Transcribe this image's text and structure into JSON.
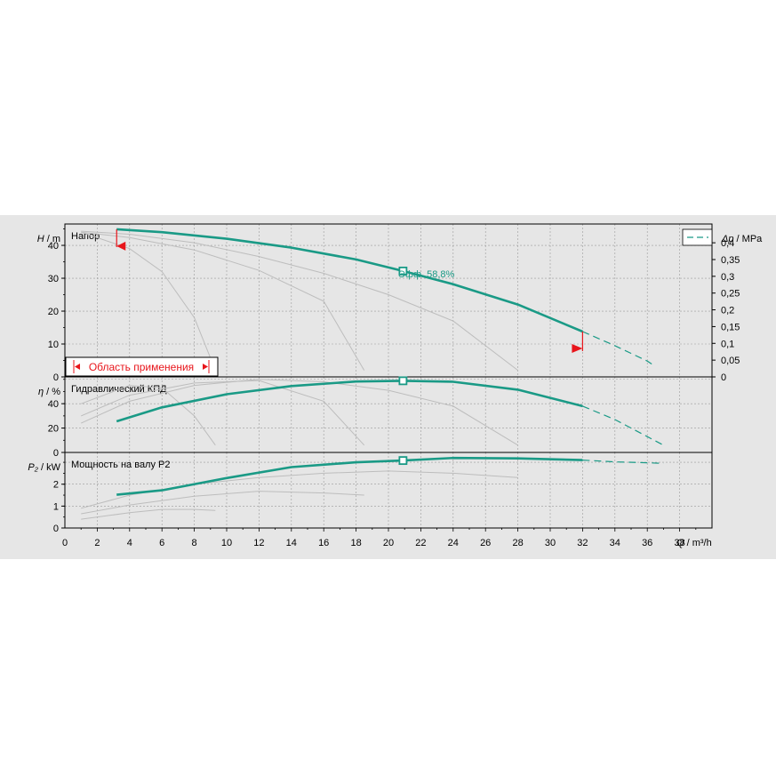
{
  "chart_data": {
    "type": "line",
    "x_label": "Q / m³/h",
    "x_label_sym": "Q",
    "x_label_unit": " / m³/h",
    "x_range": [
      0,
      40
    ],
    "x_ticks": [
      0,
      2,
      4,
      6,
      8,
      10,
      12,
      14,
      16,
      18,
      20,
      22,
      24,
      26,
      28,
      30,
      32,
      34,
      36,
      38
    ],
    "grid": true,
    "colors": {
      "main": "#1a9a86",
      "range": "#e8151b",
      "secondary": "#bdbdbd",
      "background": "#e6e6e6"
    },
    "duty_point": {
      "q": 20.9,
      "h": 32.2,
      "eta": 58.8,
      "p2": 3.08
    },
    "efficiency_label": "Эфф. 58,8%",
    "application_range": {
      "label": "Область применения",
      "q_min": 3.2,
      "q_max": 32
    },
    "legend": {
      "placement": "top-right",
      "symbol": "dashed-line"
    },
    "panels": [
      {
        "id": "head",
        "title": "Напор",
        "y_label_sym": "H",
        "y_label_unit": " / m",
        "y_range": [
          0,
          46.5
        ],
        "y_ticks": [
          "0",
          "10",
          "20",
          "30",
          "40"
        ],
        "y_tick_values": [
          0,
          10,
          20,
          30,
          40
        ],
        "right_axis_label_sym": "Δp",
        "right_axis_label_unit": " / MPa",
        "right_ticks": [
          "0",
          "0,05",
          "0,1",
          "0,15",
          "0,2",
          "0,25",
          "0,3",
          "0,35",
          "0,4"
        ],
        "right_tick_values_mpa": [
          0,
          0.05,
          0.1,
          0.15,
          0.2,
          0.25,
          0.3,
          0.35,
          0.4
        ],
        "main_curve": [
          [
            3.2,
            44.9
          ],
          [
            6,
            44.0
          ],
          [
            10,
            42.0
          ],
          [
            14,
            39.3
          ],
          [
            18,
            35.7
          ],
          [
            20.9,
            32.2
          ],
          [
            24,
            28.2
          ],
          [
            28,
            22.0
          ],
          [
            32,
            13.8
          ]
        ],
        "extension": [
          [
            32,
            13.8
          ],
          [
            34,
            9.5
          ],
          [
            36,
            4.8
          ],
          [
            36.5,
            3.2
          ]
        ],
        "secondary_curves": [
          [
            [
              1,
              44.3
            ],
            [
              4,
              43.4
            ],
            [
              8,
              40.8
            ],
            [
              12,
              36.6
            ],
            [
              16,
              31.5
            ],
            [
              20,
              25.0
            ],
            [
              24,
              17.0
            ],
            [
              28,
              2.0
            ]
          ],
          [
            [
              1,
              44.0
            ],
            [
              4,
              42.4
            ],
            [
              8,
              38.6
            ],
            [
              12,
              32.4
            ],
            [
              16,
              23.0
            ],
            [
              18.5,
              2.0
            ]
          ],
          [
            [
              1,
              44.0
            ],
            [
              4,
              39.0
            ],
            [
              6,
              32.0
            ],
            [
              8,
              18.0
            ],
            [
              9.3,
              2.0
            ]
          ]
        ]
      },
      {
        "id": "efficiency",
        "title": "Гидравлический КПД",
        "y_label_sym": "η",
        "y_label_unit": " / %",
        "y_range": [
          0,
          62
        ],
        "y_ticks": [
          "0",
          "20",
          "40"
        ],
        "y_tick_values": [
          0,
          20,
          40
        ],
        "main_curve": [
          [
            3.2,
            25.5
          ],
          [
            6,
            37.0
          ],
          [
            10,
            47.8
          ],
          [
            14,
            54.5
          ],
          [
            18,
            58.2
          ],
          [
            20.9,
            58.8
          ],
          [
            24,
            58.0
          ],
          [
            28,
            51.5
          ],
          [
            32,
            38.0
          ]
        ],
        "extension": [
          [
            32,
            38.0
          ],
          [
            34,
            27.0
          ],
          [
            36,
            13.0
          ],
          [
            37,
            6.0
          ]
        ],
        "secondary_curves": [
          [
            [
              1,
              24
            ],
            [
              4,
              42
            ],
            [
              8,
              55
            ],
            [
              12,
              60
            ],
            [
              16,
              58
            ],
            [
              20,
              51
            ],
            [
              24,
              38
            ],
            [
              28,
              6
            ]
          ],
          [
            [
              1,
              30
            ],
            [
              4,
              47
            ],
            [
              8,
              57
            ],
            [
              12,
              59
            ],
            [
              16,
              42
            ],
            [
              18.5,
              6
            ]
          ],
          [
            [
              1,
              40
            ],
            [
              4,
              55
            ],
            [
              6,
              53
            ],
            [
              8,
              30
            ],
            [
              9.3,
              6
            ]
          ]
        ]
      },
      {
        "id": "power",
        "title": "Мощность на валу P2",
        "y_label_sym": "P₂",
        "y_label_unit": " / kW",
        "y_range": [
          0,
          3.45
        ],
        "y_ticks": [
          "0",
          "1",
          "2"
        ],
        "y_tick_values": [
          0,
          1,
          2
        ],
        "main_curve": [
          [
            3.2,
            1.52
          ],
          [
            6,
            1.72
          ],
          [
            10,
            2.28
          ],
          [
            14,
            2.78
          ],
          [
            18,
            3.0
          ],
          [
            20.9,
            3.08
          ],
          [
            24,
            3.2
          ],
          [
            28,
            3.18
          ],
          [
            32,
            3.1
          ]
        ],
        "extension": [
          [
            32,
            3.1
          ],
          [
            34,
            3.02
          ],
          [
            36,
            2.98
          ],
          [
            37,
            2.95
          ]
        ],
        "secondary_curves": [
          [
            [
              1,
              0.9
            ],
            [
              4,
              1.5
            ],
            [
              8,
              2.0
            ],
            [
              12,
              2.3
            ],
            [
              16,
              2.5
            ],
            [
              20,
              2.6
            ],
            [
              24,
              2.5
            ],
            [
              28,
              2.3
            ]
          ],
          [
            [
              1,
              0.65
            ],
            [
              4,
              1.05
            ],
            [
              8,
              1.45
            ],
            [
              12,
              1.68
            ],
            [
              16,
              1.6
            ],
            [
              18.5,
              1.5
            ]
          ],
          [
            [
              1,
              0.4
            ],
            [
              4,
              0.7
            ],
            [
              6,
              0.85
            ],
            [
              8,
              0.85
            ],
            [
              9.3,
              0.8
            ]
          ]
        ]
      }
    ]
  }
}
